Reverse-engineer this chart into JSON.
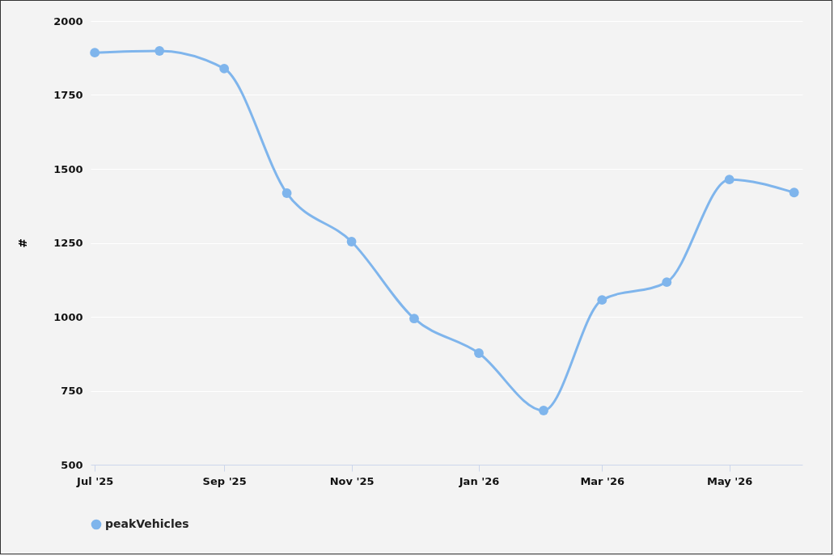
{
  "chart_data": {
    "type": "line",
    "ylabel": "#",
    "x": [
      "2025-07",
      "2025-08",
      "2025-09",
      "2025-10",
      "2025-11",
      "2025-12",
      "2026-01",
      "2026-02",
      "2026-03",
      "2026-04",
      "2026-05",
      "2026-06"
    ],
    "series": [
      {
        "name": "peakVehicles",
        "color": "#7fb5ec",
        "values": [
          1893,
          1899,
          1839,
          1418,
          1254,
          994,
          877,
          683,
          1057,
          1117,
          1464,
          1420
        ]
      }
    ],
    "xlim": [
      "2025-06-29",
      "2026-06-05"
    ],
    "xticks": [
      {
        "value": "2025-07",
        "label": "Jul '25"
      },
      {
        "value": "2025-09",
        "label": "Sep '25"
      },
      {
        "value": "2025-11",
        "label": "Nov '25"
      },
      {
        "value": "2026-01",
        "label": "Jan '26"
      },
      {
        "value": "2026-03",
        "label": "Mar '26"
      },
      {
        "value": "2026-05",
        "label": "May '26"
      }
    ],
    "ylim": [
      500,
      2000
    ],
    "yticks": [
      500,
      750,
      1000,
      1250,
      1500,
      1750,
      2000
    ],
    "grid": "y",
    "legend": "bottom",
    "marker": "circle",
    "line_style": "solid"
  }
}
